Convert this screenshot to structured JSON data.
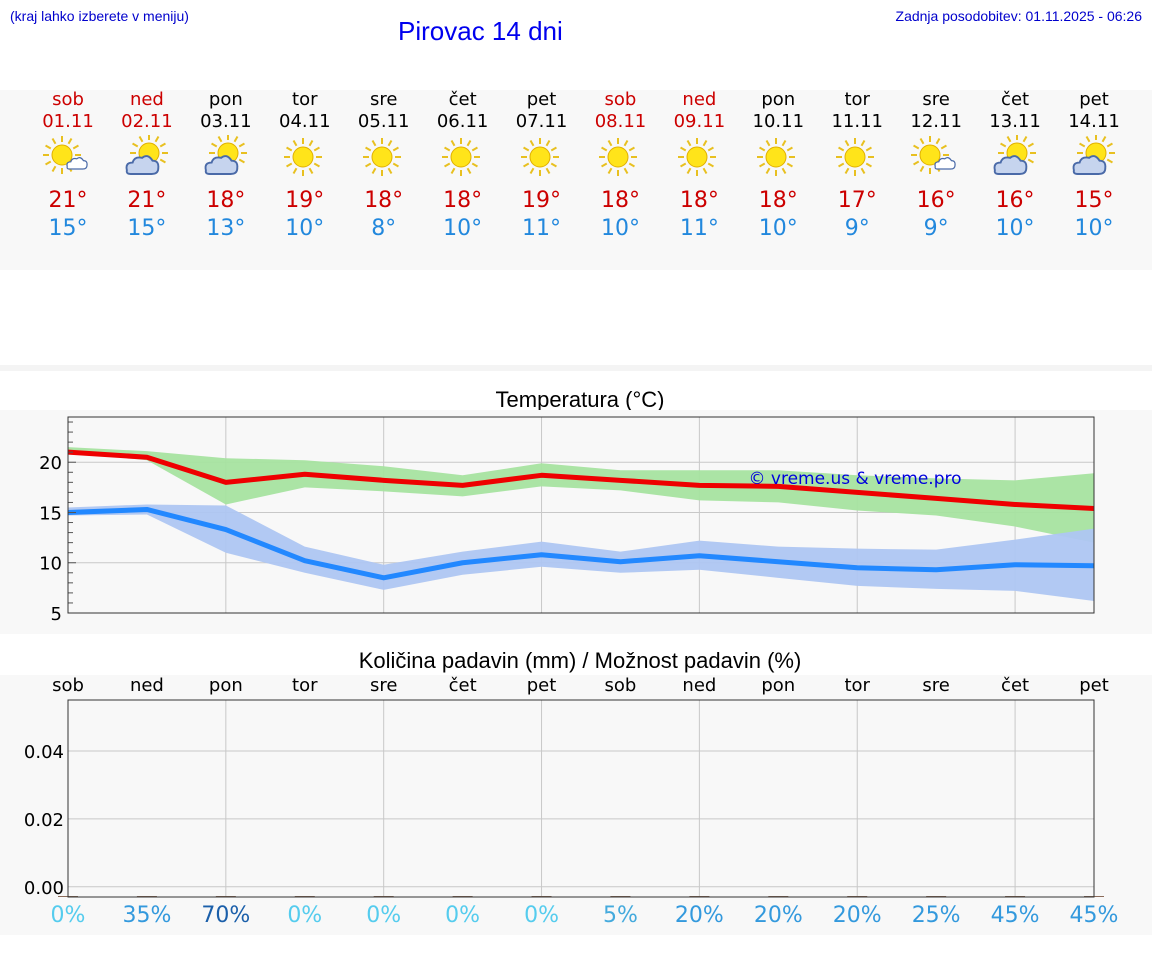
{
  "header": {
    "hint": "(kraj lahko izberete v meniju)",
    "title": "Pirovac 14 dni",
    "updated": "Zadnja posodobitev: 01.11.2025 - 06:26"
  },
  "days": [
    {
      "name": "sob",
      "date": "01.11",
      "weekend": true,
      "icon": "sun-cloud-icon",
      "tmax": "21°",
      "tmin": "15°"
    },
    {
      "name": "ned",
      "date": "02.11",
      "weekend": true,
      "icon": "cloud-sun-icon",
      "tmax": "21°",
      "tmin": "15°"
    },
    {
      "name": "pon",
      "date": "03.11",
      "weekend": false,
      "icon": "cloud-sun-icon",
      "tmax": "18°",
      "tmin": "13°"
    },
    {
      "name": "tor",
      "date": "04.11",
      "weekend": false,
      "icon": "sun-icon",
      "tmax": "19°",
      "tmin": "10°"
    },
    {
      "name": "sre",
      "date": "05.11",
      "weekend": false,
      "icon": "sun-icon",
      "tmax": "18°",
      "tmin": "8°"
    },
    {
      "name": "čet",
      "date": "06.11",
      "weekend": false,
      "icon": "sun-icon",
      "tmax": "18°",
      "tmin": "10°"
    },
    {
      "name": "pet",
      "date": "07.11",
      "weekend": false,
      "icon": "sun-icon",
      "tmax": "19°",
      "tmin": "11°"
    },
    {
      "name": "sob",
      "date": "08.11",
      "weekend": true,
      "icon": "sun-icon",
      "tmax": "18°",
      "tmin": "10°"
    },
    {
      "name": "ned",
      "date": "09.11",
      "weekend": true,
      "icon": "sun-icon",
      "tmax": "18°",
      "tmin": "11°"
    },
    {
      "name": "pon",
      "date": "10.11",
      "weekend": false,
      "icon": "sun-icon",
      "tmax": "18°",
      "tmin": "10°"
    },
    {
      "name": "tor",
      "date": "11.11",
      "weekend": false,
      "icon": "sun-icon",
      "tmax": "17°",
      "tmin": "9°"
    },
    {
      "name": "sre",
      "date": "12.11",
      "weekend": false,
      "icon": "sun-cloud-icon",
      "tmax": "16°",
      "tmin": "9°"
    },
    {
      "name": "čet",
      "date": "13.11",
      "weekend": false,
      "icon": "cloud-sun-icon",
      "tmax": "16°",
      "tmin": "10°"
    },
    {
      "name": "pet",
      "date": "14.11",
      "weekend": false,
      "icon": "cloud-sun-icon",
      "tmax": "15°",
      "tmin": "10°"
    }
  ],
  "chart_data": [
    {
      "type": "line",
      "title": "Temperatura (°C)",
      "watermark": "© vreme.us & vreme.pro",
      "ylim": [
        5,
        24.5
      ],
      "yticks": [
        "5",
        "10",
        "15",
        "20"
      ],
      "ytick_values": [
        5,
        10,
        15,
        20
      ],
      "x": [
        0,
        1,
        2,
        3,
        4,
        5,
        6,
        7,
        8,
        9,
        10,
        11,
        12,
        13
      ],
      "series": [
        {
          "name": "max",
          "color": "#ee0000",
          "values": [
            21.0,
            20.5,
            18.0,
            18.8,
            18.2,
            17.7,
            18.7,
            18.2,
            17.7,
            17.6,
            17.0,
            16.4,
            15.8,
            15.4
          ],
          "band_low": [
            21.0,
            20.2,
            15.8,
            17.5,
            17.1,
            16.6,
            17.6,
            17.2,
            16.2,
            16.0,
            15.2,
            14.7,
            13.6,
            12.0
          ],
          "band_high": [
            21.5,
            21.1,
            20.4,
            20.2,
            19.6,
            18.7,
            19.9,
            19.2,
            19.2,
            19.2,
            18.7,
            18.4,
            18.2,
            18.9
          ],
          "band_color": "#a6e3a0"
        },
        {
          "name": "min",
          "color": "#2288ff",
          "values": [
            15.0,
            15.3,
            13.3,
            10.2,
            8.5,
            10.0,
            10.8,
            10.1,
            10.7,
            10.1,
            9.5,
            9.3,
            9.8,
            9.7
          ],
          "band_low": [
            14.7,
            14.8,
            11.0,
            9.0,
            7.3,
            8.8,
            9.6,
            9.0,
            9.3,
            8.5,
            7.7,
            7.4,
            7.2,
            6.2
          ],
          "band_high": [
            15.5,
            15.8,
            15.7,
            11.6,
            9.8,
            11.1,
            12.1,
            11.1,
            12.2,
            11.6,
            11.4,
            11.3,
            12.3,
            13.4
          ],
          "band_color": "#aec6f2"
        }
      ]
    },
    {
      "type": "bar",
      "title": "Količina padavin (mm) / Možnost padavin (%)",
      "ylim": [
        -0.003,
        0.055
      ],
      "yticks": [
        "0.00",
        "0.02",
        "0.04"
      ],
      "ytick_values": [
        0.0,
        0.02,
        0.04
      ],
      "categories": [
        "sob",
        "ned",
        "pon",
        "tor",
        "sre",
        "čet",
        "pet",
        "sob",
        "ned",
        "pon",
        "tor",
        "sre",
        "čet",
        "pet"
      ],
      "values": [
        0,
        0,
        0,
        0,
        0,
        0,
        0,
        0,
        0,
        0,
        0,
        0,
        0,
        0
      ],
      "probability": [
        "0%",
        "35%",
        "70%",
        "0%",
        "0%",
        "0%",
        "0%",
        "5%",
        "20%",
        "20%",
        "20%",
        "25%",
        "45%",
        "45%"
      ],
      "probability_values": [
        0,
        35,
        70,
        0,
        0,
        0,
        0,
        5,
        20,
        20,
        20,
        25,
        45,
        45
      ]
    }
  ]
}
